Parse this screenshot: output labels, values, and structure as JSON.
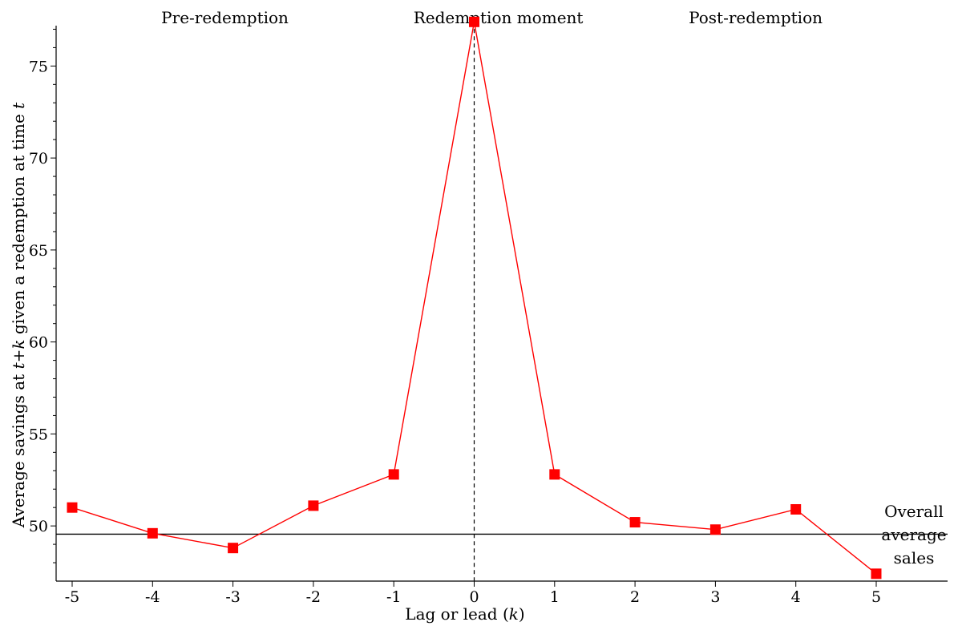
{
  "chart_data": {
    "type": "line",
    "title": "",
    "xlabel": "Lag or lead (",
    "xlabel_var": "k",
    "xlabel_end": ")",
    "ylabel_prefix": "Average savings at ",
    "ylabel_var1": "t+k",
    "ylabel_mid": " given a redemption at time ",
    "ylabel_var2": "t",
    "x": [
      -5,
      -4,
      -3,
      -2,
      -1,
      0,
      1,
      2,
      3,
      4,
      5
    ],
    "y": [
      51.0,
      49.6,
      48.8,
      51.1,
      52.8,
      77.4,
      52.8,
      50.2,
      49.8,
      50.9,
      47.4
    ],
    "xlim": [
      -5.1,
      5.1
    ],
    "ylim": [
      47.0,
      77.5
    ],
    "x_ticks": [
      "-5",
      "-4",
      "-3",
      "-2",
      "-1",
      "0",
      "1",
      "2",
      "3",
      "4",
      "5"
    ],
    "y_ticks": [
      "50",
      "55",
      "60",
      "65",
      "70",
      "75"
    ],
    "reference_line": {
      "y": 49.55,
      "label_lines": [
        "Overall",
        "average",
        "sales"
      ]
    },
    "vertical_marker_x": 0,
    "region_labels": [
      {
        "x": -3.1,
        "text": "Pre-redemption"
      },
      {
        "x": 0.3,
        "text": "Redemption moment"
      },
      {
        "x": 3.5,
        "text": "Post-redemption"
      }
    ],
    "series_color": "#ff0000",
    "marker": "square",
    "grid": false
  }
}
